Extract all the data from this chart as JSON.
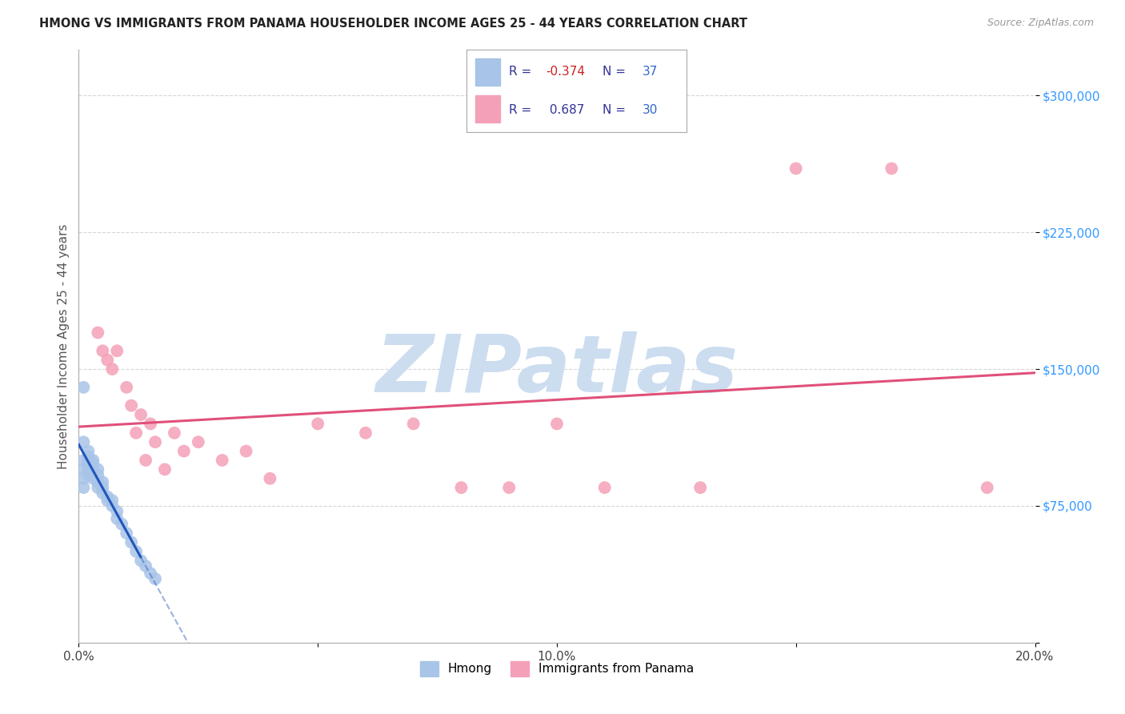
{
  "title": "HMONG VS IMMIGRANTS FROM PANAMA HOUSEHOLDER INCOME AGES 25 - 44 YEARS CORRELATION CHART",
  "source": "Source: ZipAtlas.com",
  "ylabel": "Householder Income Ages 25 - 44 years",
  "xlim": [
    0.0,
    0.2
  ],
  "ylim": [
    0,
    325000
  ],
  "yticks": [
    0,
    75000,
    150000,
    225000,
    300000
  ],
  "ytick_labels": [
    "",
    "$75,000",
    "$150,000",
    "$225,000",
    "$300,000"
  ],
  "xticks": [
    0.0,
    0.05,
    0.1,
    0.15,
    0.2
  ],
  "xtick_labels": [
    "0.0%",
    "",
    "10.0%",
    "",
    "20.0%"
  ],
  "hmong_R": "-0.374",
  "hmong_N": "37",
  "panama_R": "0.687",
  "panama_N": "30",
  "hmong_color": "#a8c4e8",
  "hmong_line_color": "#2255bb",
  "panama_color": "#f4a0b8",
  "panama_line_color": "#e0507a",
  "watermark": "ZIPatlas",
  "watermark_color": "#ccddf0",
  "background_color": "#ffffff",
  "grid_color": "#cccccc",
  "hmong_x": [
    0.001,
    0.001,
    0.001,
    0.001,
    0.001,
    0.001,
    0.002,
    0.002,
    0.002,
    0.002,
    0.002,
    0.002,
    0.003,
    0.003,
    0.003,
    0.003,
    0.004,
    0.004,
    0.004,
    0.004,
    0.005,
    0.005,
    0.005,
    0.006,
    0.006,
    0.007,
    0.007,
    0.008,
    0.008,
    0.009,
    0.01,
    0.011,
    0.012,
    0.013,
    0.014,
    0.015,
    0.016
  ],
  "hmong_y": [
    140000,
    110000,
    100000,
    95000,
    90000,
    85000,
    105000,
    102000,
    100000,
    98000,
    95000,
    92000,
    100000,
    98000,
    95000,
    90000,
    95000,
    92000,
    88000,
    85000,
    88000,
    85000,
    82000,
    80000,
    78000,
    78000,
    75000,
    72000,
    68000,
    65000,
    60000,
    55000,
    50000,
    45000,
    42000,
    38000,
    35000
  ],
  "panama_x": [
    0.004,
    0.005,
    0.006,
    0.007,
    0.008,
    0.01,
    0.011,
    0.012,
    0.013,
    0.014,
    0.015,
    0.016,
    0.018,
    0.02,
    0.022,
    0.025,
    0.03,
    0.035,
    0.04,
    0.05,
    0.06,
    0.07,
    0.08,
    0.09,
    0.1,
    0.11,
    0.13,
    0.15,
    0.17,
    0.19
  ],
  "panama_y": [
    170000,
    160000,
    155000,
    150000,
    160000,
    140000,
    130000,
    115000,
    125000,
    100000,
    120000,
    110000,
    95000,
    115000,
    105000,
    110000,
    100000,
    105000,
    90000,
    120000,
    115000,
    120000,
    85000,
    85000,
    120000,
    85000,
    85000,
    260000,
    260000,
    85000
  ]
}
